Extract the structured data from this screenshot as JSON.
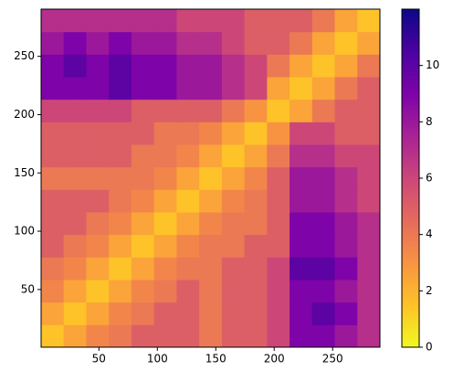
{
  "chart_data": {
    "type": "heatmap",
    "colormap": "plasma_r",
    "xlim": [
      0.5,
      290.5
    ],
    "ylim": [
      0.5,
      290.5
    ],
    "xticks": [
      50,
      100,
      150,
      200,
      250
    ],
    "yticks": [
      50,
      100,
      150,
      200,
      250
    ],
    "clim": [
      0,
      12
    ],
    "cticks": [
      0,
      2,
      4,
      6,
      8,
      10
    ],
    "values": [
      [
        1.5,
        2.5,
        3.5,
        4,
        5,
        5,
        5,
        4,
        5,
        5,
        6,
        9,
        9,
        8,
        7
      ],
      [
        2.5,
        1.5,
        2.5,
        3.5,
        4,
        5,
        5,
        4,
        5,
        5,
        6,
        9,
        10,
        9,
        7
      ],
      [
        3.5,
        2.5,
        1.5,
        2.5,
        3.5,
        4,
        5,
        4,
        5,
        5,
        6,
        9,
        9,
        8,
        7
      ],
      [
        4,
        3.5,
        2.5,
        1.5,
        2.5,
        3.5,
        4,
        4,
        5,
        5,
        6,
        10,
        10,
        9,
        7
      ],
      [
        5,
        4,
        3.5,
        2.5,
        1.5,
        2.5,
        3.5,
        4,
        4,
        5,
        5,
        9,
        9,
        8,
        7
      ],
      [
        5,
        5,
        4,
        3.5,
        2.5,
        1.5,
        2.5,
        3.5,
        4,
        4,
        5,
        9,
        9,
        8,
        7
      ],
      [
        5,
        5,
        5,
        4,
        3.5,
        2.5,
        1.5,
        2.5,
        3.5,
        4,
        5,
        8,
        8,
        7,
        6
      ],
      [
        4,
        4,
        4,
        4,
        4,
        3.5,
        2.5,
        1.5,
        2.5,
        3.5,
        5,
        8,
        8,
        7,
        6
      ],
      [
        5,
        5,
        5,
        5,
        4,
        4,
        3.5,
        2.5,
        1.5,
        2.5,
        4,
        7,
        7,
        6,
        6
      ],
      [
        5,
        5,
        5,
        5,
        5,
        4,
        4,
        3.5,
        2.5,
        1.5,
        3,
        6,
        6,
        5,
        5
      ],
      [
        6,
        6,
        6,
        6,
        5,
        5,
        5,
        5,
        4,
        3,
        1.5,
        2.5,
        4,
        5,
        5
      ],
      [
        9,
        9,
        9,
        10,
        9,
        9,
        8,
        8,
        7,
        6,
        2.5,
        1.5,
        2.5,
        4,
        5
      ],
      [
        9,
        10,
        9,
        10,
        9,
        9,
        8,
        8,
        7,
        6,
        4,
        2.5,
        1.5,
        2.5,
        4
      ],
      [
        8,
        9,
        8,
        9,
        8,
        8,
        7,
        7,
        6,
        5,
        5,
        4,
        2.5,
        1.5,
        2.5
      ],
      [
        7,
        7,
        7,
        7,
        7,
        7,
        6,
        6,
        6,
        5,
        5,
        5,
        4,
        2.5,
        1.5
      ]
    ]
  }
}
